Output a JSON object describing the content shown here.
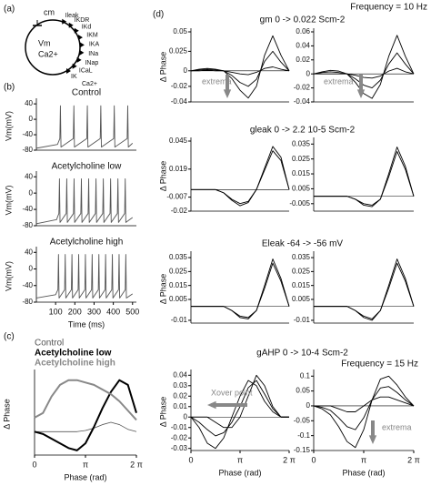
{
  "panel_labels": [
    "(a)",
    "(b)",
    "(c)",
    "(d)"
  ],
  "cell_labels": [
    "cm",
    "Vm",
    "Ca2+",
    "Ileak",
    "IKDR",
    "IKd",
    "IKM",
    "IKA",
    "INa",
    "INap",
    "ICaL",
    "IK",
    "Ca2+"
  ],
  "frequency_labels": [
    "Frequency = 10 Hz",
    "Frequency = 15 Hz"
  ],
  "chart_data": [
    {
      "type": "line",
      "title": "Control",
      "ylabel": "Vm(mV)",
      "color": "#555555",
      "x": [
        0,
        110,
        122,
        125,
        128,
        192,
        195,
        198,
        262,
        265,
        268,
        332,
        335,
        338,
        402,
        405,
        408,
        472,
        475,
        478,
        500
      ],
      "values": [
        -75,
        -65,
        -50,
        35,
        -72,
        -50,
        35,
        -72,
        -50,
        35,
        -72,
        -50,
        35,
        -72,
        -50,
        35,
        -72,
        -50,
        35,
        -72,
        -62
      ],
      "xlim": [
        0,
        520
      ],
      "ylim": [
        -80,
        45
      ],
      "yticks": [
        -80,
        -40,
        0,
        40
      ]
    },
    {
      "type": "line",
      "title": "Acetylcholine low",
      "ylabel": "Vm(mV)",
      "color": "#555555",
      "x": [
        0,
        105,
        117,
        120,
        123,
        155,
        158,
        161,
        193,
        196,
        199,
        231,
        234,
        237,
        269,
        272,
        275,
        307,
        310,
        313,
        345,
        348,
        351,
        383,
        386,
        389,
        421,
        424,
        427,
        459,
        462,
        465,
        500
      ],
      "values": [
        -75,
        -65,
        -50,
        35,
        -72,
        -50,
        35,
        -72,
        -50,
        35,
        -72,
        -50,
        35,
        -72,
        -50,
        35,
        -72,
        -50,
        35,
        -72,
        -50,
        35,
        -72,
        -50,
        35,
        -72,
        -50,
        35,
        -72,
        -50,
        35,
        -72,
        -60
      ],
      "xlim": [
        0,
        520
      ],
      "ylim": [
        -80,
        45
      ],
      "yticks": [
        -80,
        -40,
        0,
        40
      ]
    },
    {
      "type": "line",
      "title": "Acetylcholine high",
      "ylabel": "Vm(mV)",
      "xlabel": "Time (ms)",
      "color": "#555555",
      "x": [
        0,
        100,
        112,
        115,
        118,
        147,
        150,
        153,
        182,
        185,
        188,
        217,
        220,
        223,
        252,
        255,
        258,
        287,
        290,
        293,
        322,
        325,
        328,
        357,
        360,
        363,
        392,
        395,
        398,
        427,
        430,
        433,
        462,
        465,
        468,
        500
      ],
      "values": [
        -70,
        -62,
        -50,
        35,
        -70,
        -50,
        35,
        -70,
        -50,
        35,
        -70,
        -50,
        35,
        -70,
        -50,
        35,
        -70,
        -50,
        35,
        -70,
        -50,
        35,
        -70,
        -50,
        35,
        -70,
        -50,
        35,
        -70,
        -50,
        35,
        -70,
        -50,
        35,
        -70,
        -60
      ],
      "xlim": [
        0,
        520
      ],
      "ylim": [
        -80,
        45
      ],
      "yticks": [
        -80,
        -40,
        0,
        40
      ],
      "xticks": [
        100,
        200,
        300,
        400,
        500
      ]
    },
    {
      "type": "line",
      "ylabel": "Δ Phase",
      "xlabel": "Phase (rad)",
      "legend": "top-left",
      "x": [
        0,
        0.5236,
        1.0472,
        1.5708,
        2.0944,
        2.618,
        3.1416,
        3.6652,
        4.1888,
        4.7124,
        5.236,
        5.7596,
        6.2832
      ],
      "series": [
        {
          "name": "Control",
          "color": "#555555",
          "line_width": 0.8,
          "values": [
            0,
            0,
            0,
            0,
            0,
            0,
            0.005,
            0.015,
            0.03,
            0.04,
            0.03,
            0.01,
            0
          ]
        },
        {
          "name": "Acetylcholine low",
          "color": "#000000",
          "line_width": 2,
          "values": [
            0,
            -0.01,
            -0.03,
            -0.05,
            -0.07,
            -0.08,
            -0.05,
            0.02,
            0.1,
            0.17,
            0.22,
            0.2,
            0.08
          ]
        },
        {
          "name": "Acetylcholine high",
          "color": "#888888",
          "line_width": 2,
          "values": [
            0.06,
            0.08,
            0.15,
            0.2,
            0.22,
            0.22,
            0.21,
            0.2,
            0.18,
            0.16,
            0.13,
            0.09,
            0.05
          ]
        }
      ],
      "xlim": [
        0,
        6.2832
      ],
      "ylim": [
        -0.1,
        0.25
      ],
      "xticks": [
        0,
        {
          "value": 3.1416,
          "label": "π"
        },
        {
          "value": 6.2832,
          "label": "2 π"
        }
      ]
    },
    {
      "type": "line",
      "title": "gm 0 -> 0.022 Scm-2",
      "ylabel": "Δ Phase",
      "annotation": "extrema",
      "x": [
        0,
        0.5236,
        1.0472,
        1.5708,
        2.0944,
        2.618,
        3.1416,
        3.6652,
        4.1888,
        4.7124,
        5.236,
        5.7596,
        6.2832
      ],
      "series": [
        {
          "color": "#000000",
          "values": [
            0,
            0.002,
            0.003,
            0.002,
            0,
            -0.01,
            -0.025,
            -0.035,
            -0.02,
            0.02,
            0.045,
            0.02,
            0
          ]
        },
        {
          "color": "#000000",
          "values": [
            0,
            0.001,
            0.002,
            0.001,
            0,
            -0.006,
            -0.015,
            -0.02,
            -0.011,
            0.012,
            0.025,
            0.011,
            0
          ]
        },
        {
          "color": "#000000",
          "values": [
            0,
            0,
            0.001,
            0,
            0,
            -0.002,
            -0.004,
            -0.005,
            -0.002,
            0.003,
            0.005,
            0.002,
            0
          ]
        }
      ],
      "xlim": [
        0,
        6.2832
      ],
      "ylim": [
        -0.04,
        0.05
      ],
      "yticks": [
        -0.04,
        -0.02,
        0,
        0.025,
        0.05
      ]
    },
    {
      "type": "line",
      "annotation": "extrema",
      "x": [
        0,
        0.5236,
        1.0472,
        1.5708,
        2.0944,
        2.618,
        3.1416,
        3.6652,
        4.1888,
        4.7124,
        5.236,
        5.7596,
        6.2832
      ],
      "series": [
        {
          "color": "#000000",
          "values": [
            0,
            0.003,
            0.005,
            0.004,
            0,
            -0.012,
            -0.028,
            -0.035,
            -0.015,
            0.025,
            0.055,
            0.025,
            0
          ]
        },
        {
          "color": "#000000",
          "values": [
            0,
            0.002,
            0.003,
            0.002,
            0,
            -0.007,
            -0.016,
            -0.02,
            -0.009,
            0.014,
            0.03,
            0.014,
            0
          ]
        },
        {
          "color": "#000000",
          "values": [
            0,
            0,
            0,
            0,
            0,
            -0.002,
            -0.005,
            -0.006,
            -0.003,
            0.004,
            0.008,
            0.003,
            0
          ]
        }
      ],
      "xlim": [
        0,
        6.2832
      ],
      "ylim": [
        -0.04,
        0.06
      ],
      "yticks": [
        -0.04,
        -0.02,
        0,
        0.02,
        0.04,
        0.06
      ]
    },
    {
      "type": "line",
      "title": "gleak 0 -> 2.2 10-5 Scm-2",
      "ylabel": "Δ Phase",
      "x": [
        0,
        0.5236,
        1.0472,
        1.5708,
        2.0944,
        2.618,
        3.1416,
        3.6652,
        4.1888,
        4.7124,
        5.236,
        5.7596,
        6.2832
      ],
      "series": [
        {
          "color": "#000000",
          "values": [
            0,
            0,
            0,
            0,
            -0.003,
            -0.01,
            -0.015,
            -0.012,
            0,
            0.02,
            0.04,
            0.03,
            0
          ]
        },
        {
          "color": "#000000",
          "values": [
            0,
            0,
            0,
            0,
            -0.003,
            -0.009,
            -0.013,
            -0.011,
            0,
            0.018,
            0.036,
            0.027,
            0
          ]
        }
      ],
      "xlim": [
        0,
        6.2832
      ],
      "ylim": [
        -0.02,
        0.045
      ],
      "yticks": [
        -0.02,
        -0.007,
        0.019,
        0.045
      ]
    },
    {
      "type": "line",
      "x": [
        0,
        0.5236,
        1.0472,
        1.5708,
        2.0944,
        2.618,
        3.1416,
        3.6652,
        4.1888,
        4.7124,
        5.236,
        5.7596,
        6.2832
      ],
      "series": [
        {
          "color": "#000000",
          "values": [
            0,
            0,
            0,
            0,
            0,
            -0.002,
            -0.006,
            -0.007,
            -0.002,
            0.015,
            0.033,
            0.02,
            0
          ]
        },
        {
          "color": "#000000",
          "values": [
            0,
            0,
            0,
            0,
            0,
            -0.002,
            -0.005,
            -0.006,
            -0.002,
            0.013,
            0.03,
            0.018,
            0
          ]
        }
      ],
      "xlim": [
        0,
        6.2832
      ],
      "ylim": [
        -0.01,
        0.037
      ],
      "yticks": [
        -0.005,
        0.005,
        0.015,
        0.025,
        0.035
      ]
    },
    {
      "type": "line",
      "title": "Eleak -64 -> -56 mV",
      "ylabel": "Δ Phase",
      "x": [
        0,
        0.5236,
        1.0472,
        1.5708,
        2.0944,
        2.618,
        3.1416,
        3.6652,
        4.1888,
        4.7124,
        5.236,
        5.7596,
        6.2832
      ],
      "series": [
        {
          "color": "#000000",
          "values": [
            0,
            0,
            0,
            0,
            0,
            -0.003,
            -0.008,
            -0.009,
            -0.003,
            0.015,
            0.034,
            0.02,
            0
          ]
        },
        {
          "color": "#000000",
          "values": [
            0,
            0,
            0,
            0,
            0,
            -0.003,
            -0.007,
            -0.008,
            -0.003,
            0.013,
            0.031,
            0.018,
            0
          ]
        }
      ],
      "xlim": [
        0,
        6.2832
      ],
      "ylim": [
        -0.012,
        0.037
      ],
      "yticks": [
        -0.01,
        0.005,
        0.015,
        0.025,
        0.035
      ]
    },
    {
      "type": "line",
      "x": [
        0,
        0.5236,
        1.0472,
        1.5708,
        2.0944,
        2.618,
        3.1416,
        3.6652,
        4.1888,
        4.7124,
        5.236,
        5.7596,
        6.2832
      ],
      "series": [
        {
          "color": "#000000",
          "values": [
            0,
            0,
            0,
            0,
            0,
            -0.003,
            -0.008,
            -0.01,
            -0.003,
            0.015,
            0.034,
            0.02,
            0
          ]
        },
        {
          "color": "#000000",
          "values": [
            0,
            0,
            0,
            0,
            0,
            -0.003,
            -0.007,
            -0.009,
            -0.003,
            0.013,
            0.031,
            0.018,
            0
          ]
        }
      ],
      "xlim": [
        0,
        6.2832
      ],
      "ylim": [
        -0.012,
        0.037
      ],
      "yticks": [
        -0.01,
        0.005,
        0.015,
        0.025,
        0.035
      ]
    },
    {
      "type": "line",
      "title": "gAHP 0 -> 10-4 Scm-2",
      "ylabel": "Δ Phase",
      "xlabel": "Phase (rad)",
      "annotation": "Xover point",
      "x": [
        0,
        0.5236,
        1.0472,
        1.5708,
        2.0944,
        2.618,
        3.1416,
        3.6652,
        4.1888,
        4.7124,
        5.236,
        5.7596,
        6.2832
      ],
      "series": [
        {
          "color": "#000000",
          "values": [
            0,
            -0.01,
            -0.025,
            -0.03,
            -0.02,
            0,
            0.02,
            0.035,
            0.03,
            0.015,
            0.005,
            0,
            0
          ]
        },
        {
          "color": "#000000",
          "values": [
            0,
            -0.005,
            -0.012,
            -0.018,
            -0.015,
            -0.005,
            0.01,
            0.028,
            0.035,
            0.022,
            0.008,
            0,
            0
          ]
        },
        {
          "color": "#000000",
          "values": [
            0,
            0,
            0,
            -0.005,
            -0.01,
            -0.01,
            0,
            0.02,
            0.04,
            0.03,
            0.01,
            0,
            0
          ]
        }
      ],
      "xlim": [
        0,
        6.2832
      ],
      "ylim": [
        -0.032,
        0.042
      ],
      "yticks": [
        -0.03,
        -0.02,
        -0.01,
        0,
        0.01,
        0.02,
        0.03,
        0.04
      ],
      "xticks": [
        0,
        {
          "value": 3.1416,
          "label": "π"
        },
        {
          "value": 6.2832,
          "label": "2 π"
        }
      ]
    },
    {
      "type": "line",
      "xlabel": "Phase (rad)",
      "annotation": "extrema",
      "x": [
        0,
        0.5236,
        1.0472,
        1.5708,
        2.0944,
        2.618,
        3.1416,
        3.6652,
        4.1888,
        4.7124,
        5.236,
        5.7596,
        6.2832
      ],
      "series": [
        {
          "color": "#000000",
          "values": [
            0,
            -0.01,
            -0.03,
            -0.07,
            -0.12,
            -0.14,
            -0.08,
            0.02,
            0.09,
            0.1,
            0.07,
            0.03,
            0
          ]
        },
        {
          "color": "#000000",
          "values": [
            0,
            -0.005,
            -0.015,
            -0.04,
            -0.07,
            -0.08,
            -0.04,
            0.02,
            0.06,
            0.065,
            0.045,
            0.02,
            0
          ]
        },
        {
          "color": "#000000",
          "values": [
            0,
            0,
            0,
            -0.01,
            -0.02,
            -0.02,
            0,
            0.02,
            0.03,
            0.03,
            0.02,
            0.01,
            0
          ]
        }
      ],
      "xlim": [
        0,
        6.2832
      ],
      "ylim": [
        -0.15,
        0.11
      ],
      "yticks": [
        -0.15,
        -0.1,
        -0.05,
        0,
        0.05,
        0.1
      ],
      "xticks": [
        0,
        {
          "value": 3.1416,
          "label": "π"
        },
        {
          "value": 6.2832,
          "label": "2 π"
        }
      ]
    }
  ]
}
